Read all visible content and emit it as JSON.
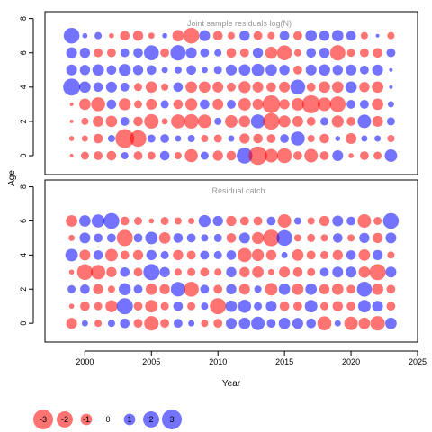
{
  "chart_data": {
    "type": "scatter",
    "subtype": "bubble",
    "x_label": "Year",
    "y_label": "Age",
    "x_ticks": [
      2000,
      2005,
      2010,
      2015,
      2020,
      2025
    ],
    "y_ticks": [
      0,
      2,
      4,
      6,
      8
    ],
    "xlim": [
      1997,
      2025
    ],
    "ylim": [
      -1.1,
      8.4
    ],
    "years": [
      1999,
      2000,
      2001,
      2002,
      2003,
      2004,
      2005,
      2006,
      2007,
      2008,
      2009,
      2010,
      2011,
      2012,
      2013,
      2014,
      2015,
      2016,
      2017,
      2018,
      2019,
      2020,
      2021,
      2022,
      2023
    ],
    "ages": [
      0,
      1,
      2,
      3,
      4,
      5,
      6,
      7
    ],
    "colors": {
      "negative": "#ff0000",
      "positive": "#0000ff"
    },
    "panels": [
      {
        "title": "Joint sample residuals log(N)",
        "ages": [
          0,
          1,
          2,
          3,
          4,
          5,
          6,
          7
        ],
        "residuals": [
          [
            -0.1,
            -0.5,
            -0.6,
            -0.7,
            0.4,
            -0.6,
            -0.5,
            0.7,
            -0.4,
            -1.3,
            0.5,
            -0.8,
            -0.7,
            1.9,
            -2.6,
            -1.4,
            -1.7,
            -0.6,
            -1.4,
            -0.6,
            0.9,
            -0.2,
            -0.6,
            -0.5,
            1.2
          ],
          [
            -0.2,
            -0.3,
            -0.7,
            0.4,
            -2.7,
            -2.1,
            0.5,
            0.6,
            0.3,
            0.4,
            -0.4,
            -0.5,
            0.3,
            -0.8,
            -0.7,
            -0.6,
            0.6,
            1.5,
            -0.4,
            -0.7,
            0.2,
            -0.9,
            0.3,
            0.3,
            -0.4
          ],
          [
            -0.1,
            -0.4,
            -0.9,
            -1.0,
            0.6,
            -0.7,
            -1.6,
            -0.3,
            -1.5,
            -1.6,
            -1.4,
            0.4,
            -1.2,
            -1.0,
            1.5,
            -2.1,
            -1.1,
            -0.9,
            -0.6,
            0.5,
            -1.1,
            -0.6,
            1.4,
            -0.9,
            0.5
          ],
          [
            -0.1,
            -1.0,
            -1.5,
            0.7,
            -1.1,
            -0.5,
            -0.9,
            0.5,
            -0.7,
            -1.1,
            0.7,
            -0.9,
            0.6,
            -1.2,
            -0.9,
            -2.4,
            -0.8,
            -1.2,
            -2.5,
            -1.4,
            -1.9,
            0.6,
            0.6,
            -1.0,
            0.3
          ],
          [
            2.2,
            1.0,
            0.7,
            0.9,
            0.6,
            -0.5,
            -1.0,
            -0.4,
            0.7,
            -1.0,
            -1.0,
            -0.9,
            -0.6,
            -1.1,
            -0.9,
            -0.7,
            -0.9,
            1.7,
            -0.6,
            -1.0,
            -1.0,
            1.0,
            -0.8,
            -1.0,
            0.1
          ],
          [
            0.9,
            0.8,
            1.0,
            0.7,
            1.1,
            0.8,
            0.7,
            0.3,
            0.4,
            0.7,
            0.3,
            0.5,
            0.9,
            1.0,
            1.2,
            1.0,
            0.8,
            -0.6,
            0.9,
            1.0,
            0.8,
            0.9,
            0.6,
            0.9,
            0.1
          ],
          [
            0.9,
            0.8,
            -0.6,
            -0.6,
            0.6,
            0.7,
            1.7,
            -0.6,
            1.8,
            0.9,
            0.6,
            0.4,
            -0.7,
            -0.6,
            0.8,
            -1.1,
            -1.7,
            -0.4,
            0.7,
            0.8,
            -1.8,
            -0.5,
            -0.6,
            -0.7,
            0.6
          ],
          [
            1.9,
            0.2,
            0.4,
            -0.2,
            -0.7,
            -0.8,
            -0.3,
            0.2,
            -1.0,
            -1.9,
            0.9,
            -0.7,
            -0.4,
            0.8,
            -0.6,
            -0.4,
            0.7,
            -0.6,
            1.0,
            0.8,
            1.0,
            0.7,
            -0.4,
            0.1,
            -0.4
          ]
        ]
      },
      {
        "title": "Residual catch",
        "ages": [
          0,
          1,
          2,
          3,
          4,
          5,
          6
        ],
        "residuals": [
          [
            -0.9,
            0.3,
            -0.4,
            0.4,
            0.7,
            -0.6,
            -1.6,
            -0.6,
            0.6,
            0.3,
            -0.4,
            -0.6,
            0.9,
            1.0,
            1.4,
            0.6,
            1.0,
            0.9,
            0.7,
            -1.5,
            0.3,
            -1.4,
            -1.0,
            -1.6,
            1.0
          ],
          [
            -0.2,
            -0.7,
            -0.5,
            -1.1,
            2.0,
            -0.6,
            -1.2,
            -0.5,
            0.7,
            -0.5,
            0.4,
            -2.0,
            1.0,
            1.3,
            0.5,
            0.9,
            -0.7,
            -0.6,
            1.2,
            -0.5,
            -0.8,
            -0.6,
            1.2,
            0.9,
            -0.6
          ],
          [
            0.5,
            0.7,
            -0.8,
            -0.4,
            1.1,
            0.6,
            -1.0,
            -0.8,
            1.6,
            -1.7,
            0.6,
            -0.6,
            0.8,
            -0.9,
            0.4,
            -1.2,
            1.0,
            -1.0,
            1.0,
            -0.8,
            -1.0,
            -0.6,
            1.7,
            -1.0,
            -0.6
          ],
          [
            -0.2,
            -1.9,
            -1.6,
            -0.8,
            0.7,
            -0.6,
            2.0,
            0.8,
            -0.4,
            -0.5,
            -0.6,
            -0.4,
            0.8,
            -0.8,
            -1.0,
            -0.3,
            -0.9,
            -0.7,
            -0.5,
            0.6,
            0.9,
            0.9,
            -1.0,
            -2.0,
            0.9
          ],
          [
            1.2,
            -0.9,
            0.7,
            -1.2,
            -0.6,
            -0.8,
            0.8,
            0.5,
            -0.8,
            -0.6,
            0.6,
            0.5,
            0.7,
            -1.5,
            -1.1,
            -0.8,
            0.3,
            -1.0,
            -0.6,
            -0.5,
            -0.8,
            0.7,
            -1.0,
            0.8,
            -0.4
          ],
          [
            -0.3,
            0.9,
            0.6,
            0.6,
            -2.0,
            0.6,
            1.2,
            -1.0,
            0.7,
            0.6,
            0.4,
            0.5,
            -0.7,
            0.9,
            -1.1,
            -2.1,
            1.9,
            -0.4,
            -0.5,
            -0.4,
            0.7,
            -0.4,
            0.8,
            -0.8,
            0.9
          ],
          [
            -1.0,
            1.0,
            1.3,
            1.9,
            -0.6,
            -0.5,
            -0.2,
            -0.5,
            -0.4,
            -0.3,
            1.1,
            0.8,
            -0.8,
            -0.6,
            -0.6,
            0.6,
            -1.4,
            0.4,
            -0.4,
            -0.8,
            0.9,
            0.6,
            -1.4,
            -0.5,
            1.9
          ]
        ]
      }
    ],
    "legend": {
      "values": [
        -3,
        -2,
        -1,
        0,
        1,
        2,
        3
      ],
      "labels": [
        "-3",
        "-2",
        "-1",
        "0",
        "1",
        "2",
        "3"
      ]
    }
  }
}
